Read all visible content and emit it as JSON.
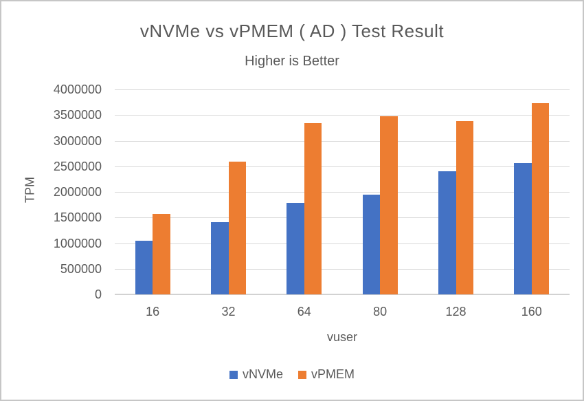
{
  "window": {
    "background": "#FFFFFF",
    "border_color": "#C6C6C6"
  },
  "chart_data": {
    "type": "bar",
    "title": "vNVMe vs vPMEM ( AD ) Test Result",
    "subtitle": "Higher is Better",
    "xlabel": "vuser",
    "ylabel": "TPM",
    "categories": [
      "16",
      "32",
      "64",
      "80",
      "128",
      "160"
    ],
    "series": [
      {
        "name": "vNVMe",
        "color": "#4472C4",
        "values": [
          1050000,
          1410000,
          1790000,
          1950000,
          2400000,
          2570000
        ]
      },
      {
        "name": "vPMEM",
        "color": "#ED7D31",
        "values": [
          1570000,
          2590000,
          3340000,
          3480000,
          3380000,
          3730000
        ]
      }
    ],
    "ylim": [
      0,
      4000000
    ],
    "ytick_step": 500000,
    "grid": true,
    "legend_position": "bottom",
    "text_color": "#595959",
    "gridline_color": "#D9D9D9",
    "axis_line_color": "#D2D2D2"
  }
}
